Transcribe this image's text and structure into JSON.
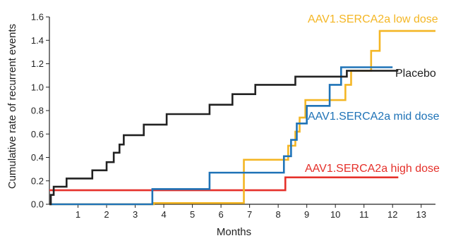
{
  "chart_data": {
    "type": "line",
    "step": true,
    "xlabel": "Months",
    "ylabel": "Cumulative rate of recurrent events",
    "xlim": [
      0,
      13.5
    ],
    "ylim": [
      0,
      1.6
    ],
    "x_ticks": [
      "1",
      "2",
      "3",
      "4",
      "5",
      "6",
      "7",
      "8",
      "9",
      "10",
      "11",
      "12",
      "13"
    ],
    "y_ticks": [
      "0.0",
      "0.2",
      "0.4",
      "0.6",
      "0.8",
      "1.0",
      "1.2",
      "1.4",
      "1.6"
    ],
    "grid": false,
    "legend": "inline labels",
    "series": [
      {
        "name": "Placebo",
        "color": "#222222",
        "x": [
          0,
          0.05,
          0.15,
          0.6,
          1.5,
          2.0,
          2.25,
          2.45,
          2.6,
          3.3,
          4.1,
          5.6,
          6.4,
          7.2,
          7.95,
          8.6,
          10.4,
          12.2
        ],
        "y": [
          0,
          0.08,
          0.15,
          0.22,
          0.29,
          0.36,
          0.44,
          0.51,
          0.59,
          0.68,
          0.77,
          0.85,
          0.94,
          1.02,
          1.02,
          1.09,
          1.14,
          1.14
        ]
      },
      {
        "name": "AAV1.SERCA2a low dose",
        "color": "#f4b624",
        "x": [
          0,
          3.65,
          6.8,
          8.1,
          8.35,
          8.6,
          8.75,
          8.95,
          9.75,
          10.35,
          10.55,
          11.25,
          11.55,
          13.5
        ],
        "y": [
          0,
          0.01,
          0.38,
          0.38,
          0.5,
          0.62,
          0.74,
          0.89,
          0.89,
          1.02,
          1.14,
          1.31,
          1.48,
          1.48
        ]
      },
      {
        "name": "AAV1.SERCA2a mid dose",
        "color": "#1f73b7",
        "x": [
          0,
          3.6,
          5.6,
          8.2,
          8.45,
          8.65,
          9.0,
          9.8,
          10.2,
          12.0
        ],
        "y": [
          0,
          0.13,
          0.27,
          0.41,
          0.55,
          0.69,
          0.84,
          1.02,
          1.17,
          1.17
        ]
      },
      {
        "name": "AAV1.SERCA2a high dose",
        "color": "#e5302a",
        "x": [
          0,
          8.25,
          12.2
        ],
        "y": [
          0.12,
          0.23,
          0.23
        ]
      }
    ],
    "annotations": [
      {
        "text": "AAV1.SERCA2a low dose",
        "color": "#f4b624"
      },
      {
        "text": "Placebo",
        "color": "#222222"
      },
      {
        "text": "AAV1.SERCA2a mid dose",
        "color": "#1f73b7"
      },
      {
        "text": "AAV1.SERCA2a high dose",
        "color": "#e5302a"
      }
    ]
  }
}
